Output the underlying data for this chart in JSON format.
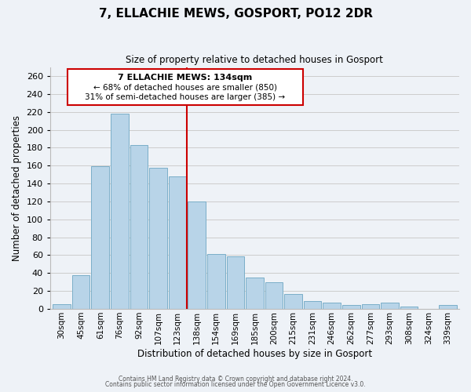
{
  "title": "7, ELLACHIE MEWS, GOSPORT, PO12 2DR",
  "subtitle": "Size of property relative to detached houses in Gosport",
  "xlabel": "Distribution of detached houses by size in Gosport",
  "ylabel": "Number of detached properties",
  "categories": [
    "30sqm",
    "45sqm",
    "61sqm",
    "76sqm",
    "92sqm",
    "107sqm",
    "123sqm",
    "138sqm",
    "154sqm",
    "169sqm",
    "185sqm",
    "200sqm",
    "215sqm",
    "231sqm",
    "246sqm",
    "262sqm",
    "277sqm",
    "293sqm",
    "308sqm",
    "324sqm",
    "339sqm"
  ],
  "values": [
    5,
    38,
    159,
    218,
    183,
    158,
    148,
    120,
    61,
    59,
    35,
    30,
    17,
    9,
    7,
    4,
    5,
    7,
    3,
    0,
    4
  ],
  "bar_color": "#b8d4e8",
  "bar_edge_color": "#7aaec8",
  "reference_line_idx": 7,
  "annotation_title": "7 ELLACHIE MEWS: 134sqm",
  "annotation_line1": "← 68% of detached houses are smaller (850)",
  "annotation_line2": "31% of semi-detached houses are larger (385) →",
  "annotation_box_color": "#ffffff",
  "annotation_box_edge": "#cc0000",
  "reference_line_color": "#cc0000",
  "footer1": "Contains HM Land Registry data © Crown copyright and database right 2024.",
  "footer2": "Contains public sector information licensed under the Open Government Licence v3.0.",
  "ylim": [
    0,
    270
  ],
  "yticks": [
    0,
    20,
    40,
    60,
    80,
    100,
    120,
    140,
    160,
    180,
    200,
    220,
    240,
    260
  ],
  "grid_color": "#cccccc",
  "background_color": "#eef2f7"
}
